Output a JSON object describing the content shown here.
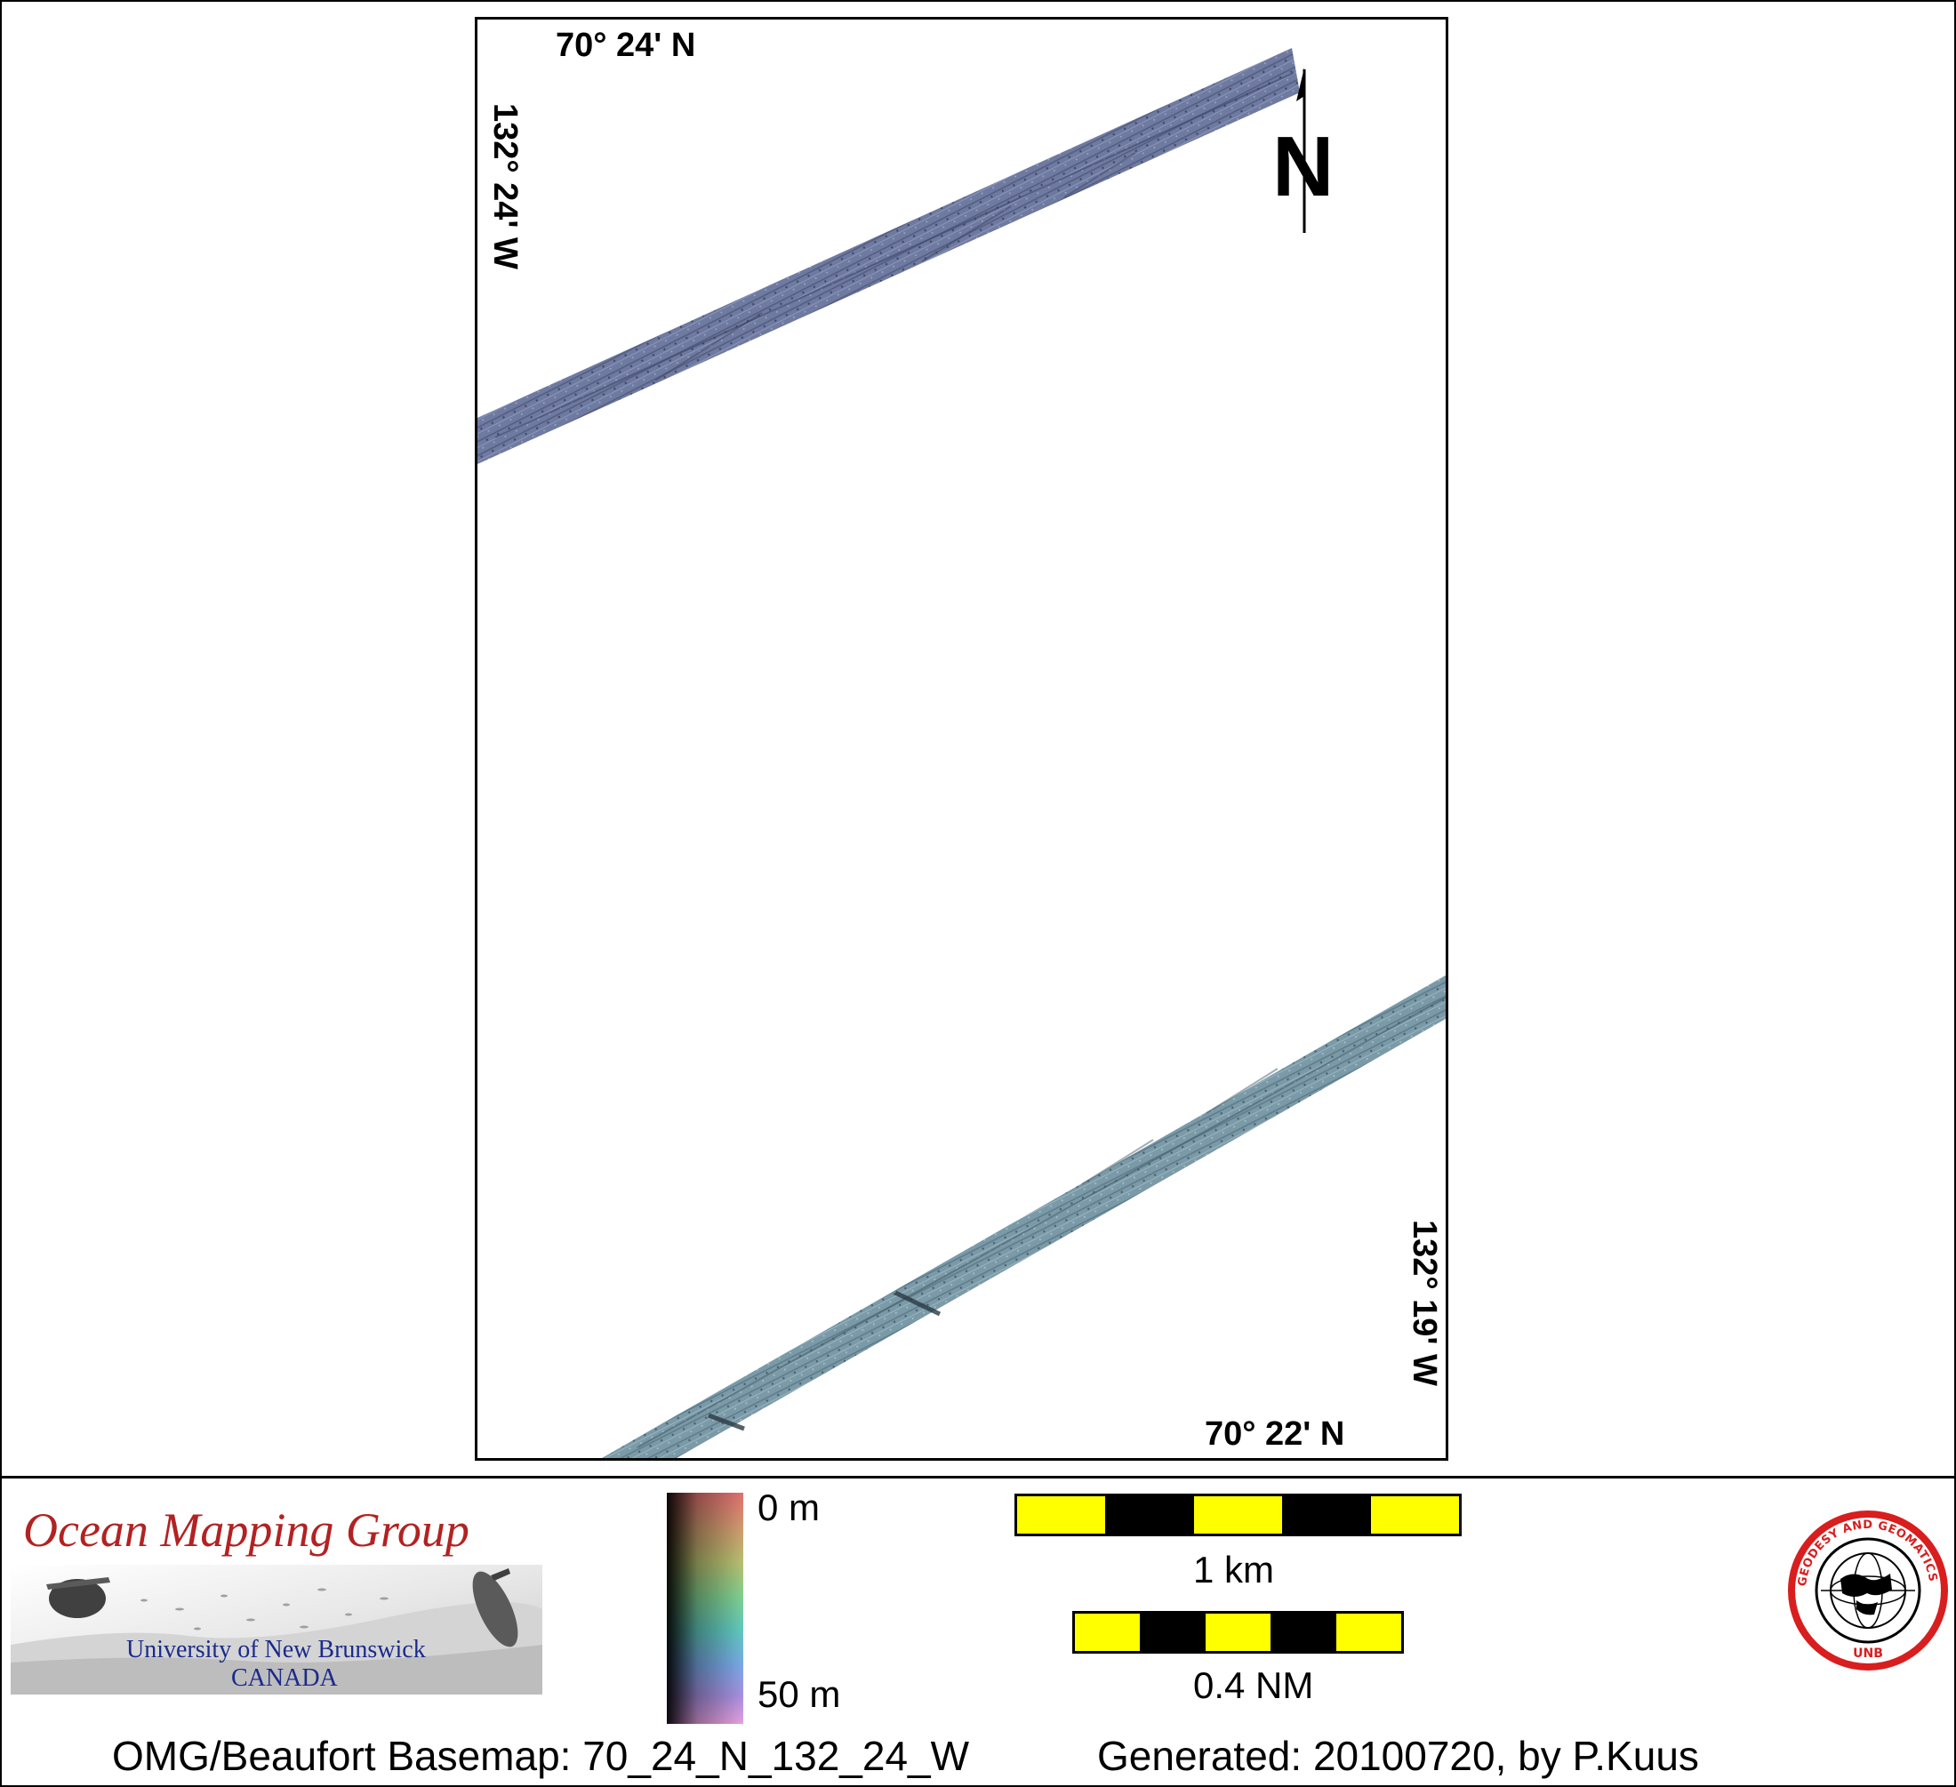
{
  "map": {
    "lat_top": "70° 24' N",
    "lat_bottom": "70° 22' N",
    "lon_left": "132° 24' W",
    "lon_right": "132° 19' W",
    "north_label": "N",
    "swath_colors": {
      "north_track": "#6f7aa0",
      "south_track": "#7b9aa8"
    }
  },
  "logo": {
    "title": "Ocean Mapping Group",
    "university": "University of New Brunswick",
    "country": "CANADA"
  },
  "colorbar": {
    "min_label": "0 m",
    "max_label": "50 m"
  },
  "scalebars": {
    "km_label": "1 km",
    "nm_label": "0.4 NM",
    "colors": [
      "#ffff00",
      "#000000"
    ]
  },
  "footer": {
    "basemap": "OMG/Beaufort Basemap: 70_24_N_132_24_W",
    "generated": "Generated: 20100720, by P.Kuus"
  },
  "seal": {
    "ring_text": "GEODESY AND GEOMATICS ENGINEERING",
    "bottom_text": "UNB"
  }
}
